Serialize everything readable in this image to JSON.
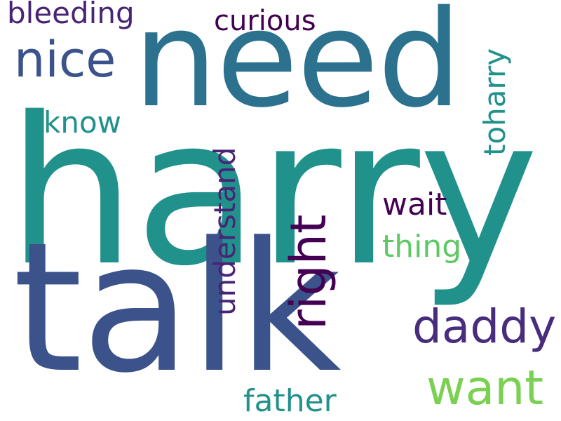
{
  "words": {
    "harry": "harry",
    "talk": "talk",
    "need": "need",
    "nice": "nice",
    "bleeding": "bleeding",
    "curious": "curious",
    "know": "know",
    "toharry": "toharry",
    "understand": "understand",
    "right": "right",
    "wait": "wait",
    "thing": "thing",
    "daddy": "daddy",
    "want": "want",
    "father": "father"
  },
  "colors": {
    "harry": "#21918c",
    "talk": "#3b528b",
    "need": "#2c728e",
    "nice": "#3b528b",
    "bleeding": "#482475",
    "curious": "#440154",
    "know": "#21918c",
    "toharry": "#21918c",
    "understand": "#482475",
    "right": "#440154",
    "wait": "#440154",
    "thing": "#5ec962",
    "daddy": "#472d7b",
    "want": "#7ad151",
    "father": "#21918c"
  }
}
